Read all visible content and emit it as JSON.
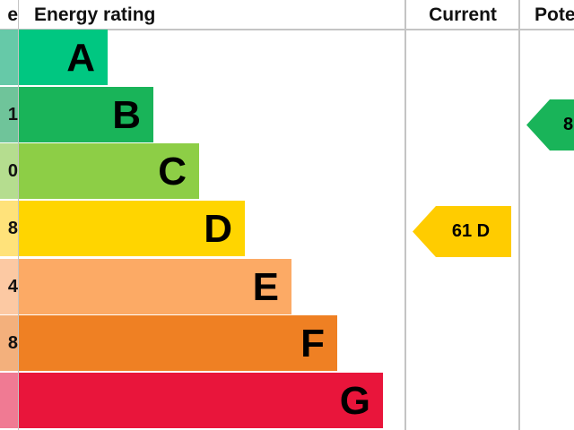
{
  "headers": {
    "score": "e",
    "rating": "Energy rating",
    "current": "Current",
    "potential": "Pote"
  },
  "chart_data": {
    "type": "bar",
    "categories": [
      "A",
      "B",
      "C",
      "D",
      "E",
      "F",
      "G"
    ],
    "score_fragments": [
      "",
      "1",
      "0",
      "8",
      "4",
      "8",
      ""
    ],
    "colors": [
      "#00c781",
      "#19b459",
      "#8dce46",
      "#ffd500",
      "#fcaa65",
      "#ef8023",
      "#e9153b"
    ],
    "score_colors": [
      "#66c9a8",
      "#6fc49a",
      "#b5dd8f",
      "#ffe27a",
      "#fcc9a3",
      "#f3b07c",
      "#f07a93"
    ],
    "current": {
      "value": 61,
      "band": "D",
      "label": "61 D",
      "color": "#ffcc00"
    },
    "potential": {
      "band": "B",
      "label": "8",
      "color": "#19b459"
    }
  }
}
